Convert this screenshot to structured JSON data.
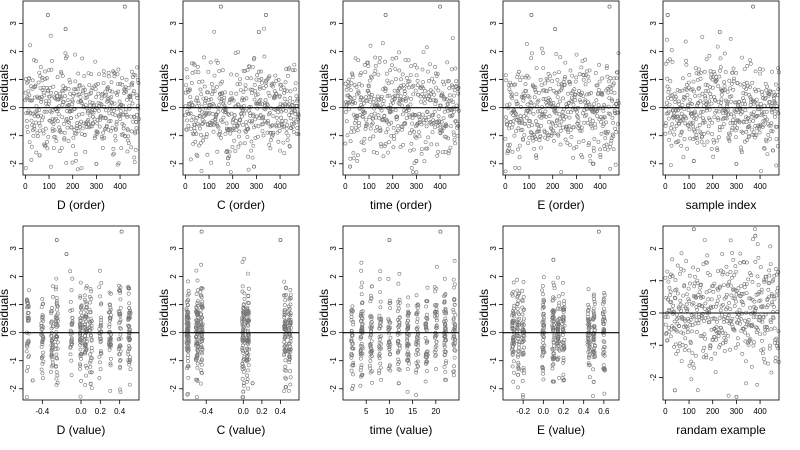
{
  "chart_data": [
    {
      "type": "scatter",
      "title": "",
      "xlabel": "D (order)",
      "ylabel": "residuals",
      "xlim": [
        -10,
        480
      ],
      "ylim": [
        -2.4,
        3.8
      ],
      "xticks": [
        0,
        100,
        200,
        300,
        400
      ],
      "yticks": [
        -2,
        -1,
        0,
        1,
        2,
        3
      ],
      "reference_line_y": 0,
      "n_points": 480,
      "x_kind": "index",
      "notable_points": [
        [
          95,
          3.3
        ],
        [
          420,
          3.6
        ],
        [
          170,
          2.8
        ],
        [
          300,
          -2.0
        ],
        [
          60,
          -1.7
        ]
      ]
    },
    {
      "type": "scatter",
      "title": "",
      "xlabel": "C (order)",
      "ylabel": "residuals",
      "xlim": [
        -10,
        480
      ],
      "ylim": [
        -2.4,
        3.8
      ],
      "xticks": [
        0,
        100,
        200,
        300,
        400
      ],
      "yticks": [
        -2,
        -1,
        0,
        1,
        2,
        3
      ],
      "reference_line_y": 0,
      "n_points": 480,
      "x_kind": "index",
      "notable_points": [
        [
          150,
          3.6
        ],
        [
          340,
          3.3
        ],
        [
          310,
          2.7
        ],
        [
          180,
          -1.8
        ],
        [
          290,
          -2.1
        ]
      ]
    },
    {
      "type": "scatter",
      "title": "",
      "xlabel": "time (order)",
      "ylabel": "residuals",
      "xlim": [
        -10,
        480
      ],
      "ylim": [
        -2.4,
        3.8
      ],
      "xticks": [
        0,
        100,
        200,
        300,
        400
      ],
      "yticks": [
        -2,
        -1,
        0,
        1,
        2,
        3
      ],
      "reference_line_y": 0,
      "n_points": 480,
      "x_kind": "index",
      "notable_points": [
        [
          170,
          3.3
        ],
        [
          400,
          3.6
        ],
        [
          300,
          -1.9
        ],
        [
          20,
          -2.1
        ]
      ]
    },
    {
      "type": "scatter",
      "title": "",
      "xlabel": "E (order)",
      "ylabel": "residuals",
      "xlim": [
        -10,
        480
      ],
      "ylim": [
        -2.4,
        3.8
      ],
      "xticks": [
        0,
        100,
        200,
        300,
        400
      ],
      "yticks": [
        -2,
        -1,
        0,
        1,
        2,
        3
      ],
      "reference_line_y": 0,
      "n_points": 480,
      "x_kind": "index",
      "notable_points": [
        [
          110,
          3.3
        ],
        [
          440,
          3.6
        ],
        [
          210,
          2.8
        ],
        [
          370,
          -2.0
        ],
        [
          130,
          -1.7
        ]
      ]
    },
    {
      "type": "scatter",
      "title": "",
      "xlabel": "sample index",
      "ylabel": "residuals",
      "xlim": [
        -10,
        480
      ],
      "ylim": [
        -2.4,
        3.8
      ],
      "xticks": [
        0,
        100,
        200,
        300,
        400
      ],
      "yticks": [
        -2,
        -1,
        0,
        1,
        2,
        3
      ],
      "reference_line_y": 0,
      "n_points": 480,
      "x_kind": "index",
      "notable_points": [
        [
          10,
          3.3
        ],
        [
          370,
          3.6
        ],
        [
          230,
          2.7
        ],
        [
          120,
          -1.9
        ],
        [
          300,
          -2.0
        ]
      ]
    },
    {
      "type": "scatter",
      "title": "",
      "xlabel": "D (value)",
      "ylabel": "residuals",
      "xlim": [
        -0.6,
        0.6
      ],
      "ylim": [
        -2.4,
        3.8
      ],
      "xticks": [
        -0.4,
        0.0,
        0.2,
        0.4
      ],
      "xtick_labels": [
        "-0.4",
        "0.0",
        "0.2",
        "0.4"
      ],
      "yticks": [
        -2,
        -1,
        0,
        1,
        2,
        3
      ],
      "reference_line_y": 0,
      "n_points": 480,
      "x_kind": "value",
      "x_clusters": [
        -0.55,
        -0.4,
        -0.3,
        -0.25,
        -0.1,
        0.0,
        0.05,
        0.1,
        0.2,
        0.3,
        0.4,
        0.5
      ],
      "notable_points": [
        [
          -0.25,
          3.3
        ],
        [
          0.42,
          3.6
        ],
        [
          -0.15,
          2.8
        ],
        [
          -0.5,
          -1.7
        ]
      ]
    },
    {
      "type": "scatter",
      "title": "",
      "xlabel": "C (value)",
      "ylabel": "residuals",
      "xlim": [
        -0.65,
        0.6
      ],
      "ylim": [
        -2.4,
        3.8
      ],
      "xticks": [
        -0.4,
        0.0,
        0.2,
        0.4
      ],
      "xtick_labels": [
        "-0.4",
        "0.0",
        "0.2",
        "0.4"
      ],
      "yticks": [
        -2,
        -1,
        0,
        1,
        2,
        3
      ],
      "reference_line_y": 0,
      "n_points": 480,
      "x_kind": "value",
      "x_clusters": [
        -0.6,
        -0.5,
        -0.45,
        0.0,
        0.05,
        0.45,
        0.5
      ],
      "notable_points": [
        [
          -0.45,
          3.6
        ],
        [
          0.4,
          3.3
        ],
        [
          0.1,
          -1.8
        ],
        [
          0.0,
          -2.1
        ]
      ]
    },
    {
      "type": "scatter",
      "title": "",
      "xlabel": "time (value)",
      "ylabel": "residuals",
      "xlim": [
        0,
        25
      ],
      "ylim": [
        -2.4,
        3.8
      ],
      "xticks": [
        5,
        10,
        15,
        20
      ],
      "xtick_labels": [
        "5",
        "10",
        "15",
        "20"
      ],
      "yticks": [
        -2,
        -1,
        0,
        1,
        2,
        3
      ],
      "reference_line_y": 0,
      "n_points": 480,
      "x_kind": "value",
      "x_clusters": [
        2,
        4,
        6,
        8,
        10,
        12,
        14,
        16,
        18,
        20,
        22,
        24
      ],
      "notable_points": [
        [
          10,
          3.3
        ],
        [
          21,
          3.6
        ],
        [
          12,
          -1.8
        ],
        [
          2,
          -2.0
        ]
      ]
    },
    {
      "type": "scatter",
      "title": "",
      "xlabel": "E (value)",
      "ylabel": "residuals",
      "xlim": [
        -0.4,
        0.75
      ],
      "ylim": [
        -2.4,
        3.8
      ],
      "xticks": [
        -0.2,
        0.0,
        0.2,
        0.4,
        0.6
      ],
      "xtick_labels": [
        "-0.2",
        "0.0",
        "0.2",
        "0.4",
        "0.6"
      ],
      "yticks": [
        -2,
        -1,
        0,
        1,
        2,
        3
      ],
      "reference_line_y": 0,
      "n_points": 480,
      "x_kind": "value",
      "x_clusters": [
        -0.3,
        -0.25,
        -0.2,
        0.0,
        0.1,
        0.15,
        0.2,
        0.45,
        0.5,
        0.6
      ],
      "notable_points": [
        [
          0.55,
          3.6
        ],
        [
          0.1,
          2.6
        ],
        [
          0.2,
          -1.7
        ],
        [
          -0.25,
          -1.5
        ]
      ]
    },
    {
      "type": "scatter",
      "title": "",
      "xlabel": "randam example",
      "ylabel": "residuals",
      "xlim": [
        -10,
        480
      ],
      "ylim": [
        -2.7,
        2.7
      ],
      "xticks": [
        0,
        100,
        200,
        300,
        400
      ],
      "yticks": [
        -2,
        -1,
        0,
        1,
        2
      ],
      "reference_line_y": 0,
      "n_points": 480,
      "x_kind": "index",
      "notable_points": [
        [
          120,
          2.6
        ],
        [
          300,
          -2.6
        ],
        [
          40,
          -2.4
        ],
        [
          380,
          2.4
        ]
      ]
    }
  ]
}
